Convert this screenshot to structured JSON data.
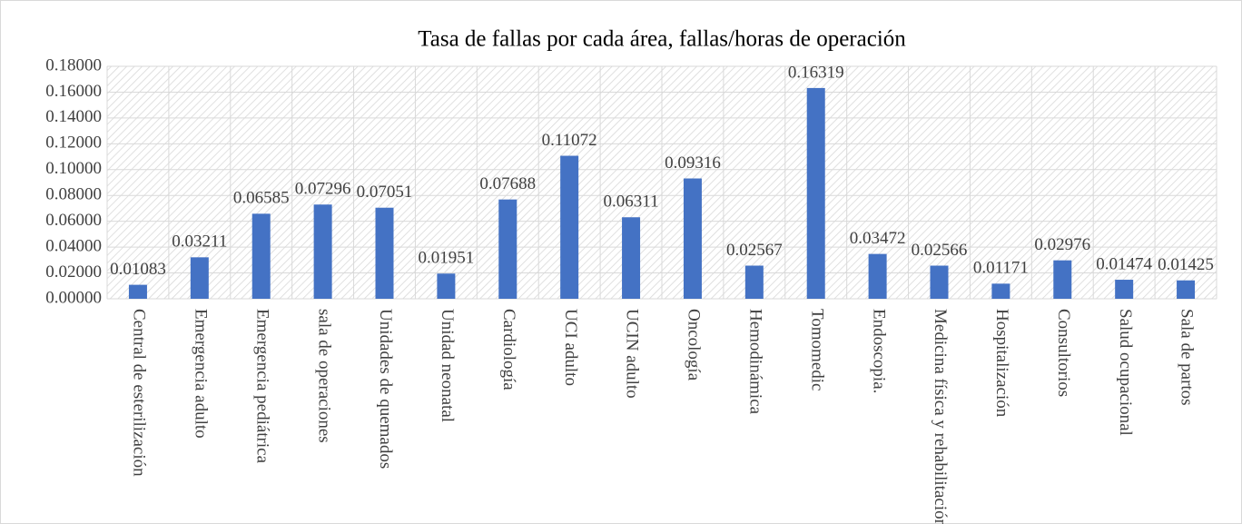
{
  "chart_data": {
    "type": "bar",
    "title": "Tasa de fallas por cada área, fallas/horas de operación",
    "categories": [
      "Central de esterilización",
      "Emergencia adulto",
      "Emergencia pediátrica",
      "sala de operaciones",
      "Unidades de quemados",
      "Unidad neonatal",
      "Cardiología",
      "UCI adulto",
      "UCIN adulto",
      "Oncología",
      "Hemodinámica",
      "Tomomedic",
      "Endoscopia.",
      "Medicina física y rehabilitación",
      "Hospitalización",
      "Consultorios",
      "Salud ocupacional",
      "Sala de partos"
    ],
    "values": [
      0.01083,
      0.03211,
      0.06585,
      0.07296,
      0.07051,
      0.01951,
      0.07688,
      0.11072,
      0.06311,
      0.09316,
      0.02567,
      0.16319,
      0.03472,
      0.02566,
      0.01171,
      0.02976,
      0.01474,
      0.01425
    ],
    "value_labels": [
      "0.01083",
      "0.03211",
      "0.06585",
      "0.07296",
      "0.07051",
      "0.01951",
      "0.07688",
      "0.11072",
      "0.06311",
      "0.09316",
      "0.02567",
      "0.16319",
      "0.03472",
      "0.02566",
      "0.01171",
      "0.02976",
      "0.01474",
      "0.01425"
    ],
    "color": "#4472c4",
    "ylim": [
      0,
      0.18
    ],
    "yticks": [
      {
        "value": 0,
        "label": "0.00000"
      },
      {
        "value": 0.02,
        "label": "0.02000"
      },
      {
        "value": 0.04,
        "label": "0.04000"
      },
      {
        "value": 0.06,
        "label": "0.06000"
      },
      {
        "value": 0.08,
        "label": "0.08000"
      },
      {
        "value": 0.1,
        "label": "0.10000"
      },
      {
        "value": 0.12,
        "label": "0.12000"
      },
      {
        "value": 0.14,
        "label": "0.14000"
      },
      {
        "value": 0.16,
        "label": "0.16000"
      },
      {
        "value": 0.18,
        "label": "0.18000"
      }
    ],
    "grid": true
  }
}
